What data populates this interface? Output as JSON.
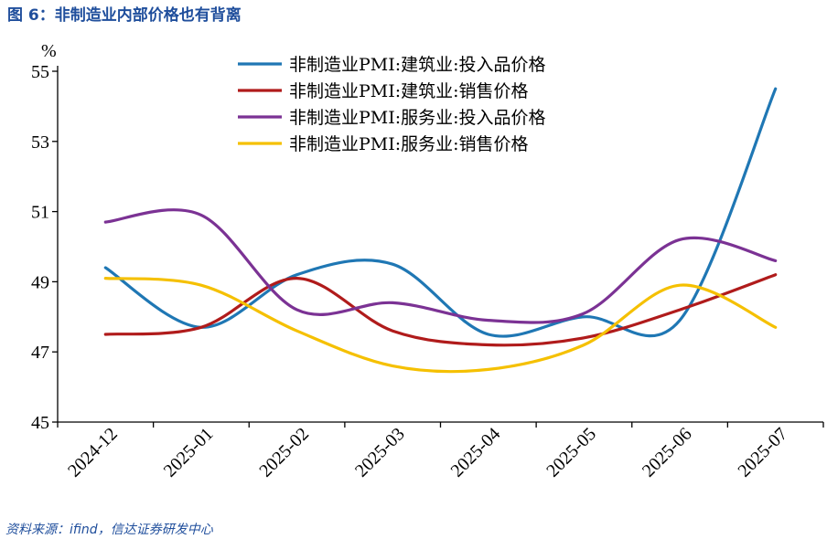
{
  "figure_title": "图 6：非制造业内部价格也有背离",
  "source": "资料来源：ifind，信达证券研发中心",
  "chart_data": {
    "type": "line",
    "title": "",
    "xlabel": "",
    "ylabel": "",
    "y_unit": "%",
    "ylim": [
      45,
      55
    ],
    "yticks": [
      45,
      47,
      49,
      51,
      53,
      55
    ],
    "categories": [
      "2024-12",
      "2025-01",
      "2025-02",
      "2025-03",
      "2025-04",
      "2025-05",
      "2025-06",
      "2025-07"
    ],
    "grid": false,
    "legend_position": "top-center",
    "series": [
      {
        "name": "非制造业PMI:建筑业:投入品价格",
        "color": "#1f77b4",
        "values": [
          49.4,
          47.7,
          49.2,
          49.5,
          47.5,
          48.0,
          47.9,
          54.5
        ]
      },
      {
        "name": "非制造业PMI:建筑业:销售价格",
        "color": "#b01b1b",
        "values": [
          47.5,
          47.7,
          49.1,
          47.6,
          47.2,
          47.4,
          48.2,
          49.2
        ]
      },
      {
        "name": "非制造业PMI:服务业:投入品价格",
        "color": "#7b3294",
        "values": [
          50.7,
          50.9,
          48.2,
          48.4,
          47.9,
          48.1,
          50.2,
          49.6
        ]
      },
      {
        "name": "非制造业PMI:服务业:销售价格",
        "color": "#f5c000",
        "values": [
          49.1,
          48.9,
          47.6,
          46.6,
          46.5,
          47.2,
          48.9,
          47.7
        ]
      }
    ]
  }
}
